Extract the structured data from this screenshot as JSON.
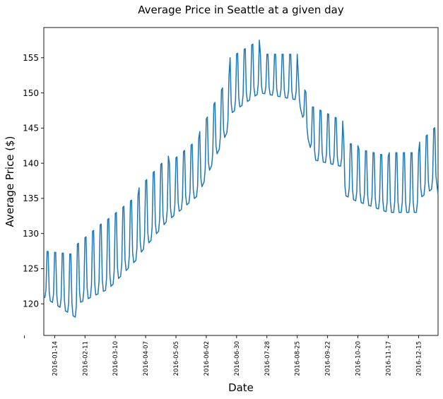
{
  "chart_data": {
    "type": "line",
    "title": "Average Price in Seattle at a given day",
    "xlabel": "Date",
    "ylabel": "Average Price ($)",
    "x_range": [
      "2016-01-04",
      "2017-01-02"
    ],
    "ylim": [
      115.5,
      159.3
    ],
    "y_ticks": [
      120,
      125,
      130,
      135,
      140,
      145,
      150,
      155
    ],
    "x_tick_labels": [
      "2016-01-14",
      "2016-02-11",
      "2016-03-10",
      "2016-04-07",
      "2016-05-05",
      "2016-06-02",
      "2016-06-30",
      "2016-07-28",
      "2016-08-25",
      "2016-09-22",
      "2016-10-20",
      "2016-11-17",
      "2016-12-15"
    ],
    "grid": false,
    "legend": "none",
    "line_color": "#1f77b4",
    "series": [
      {
        "start_date": "2016-01-04",
        "frequency": "daily",
        "weekend_peak_days": [
          3,
          4
        ],
        "segments": [
          {
            "from": "2016-01-04",
            "to": "2016-02-03",
            "base": [
              121,
              118
            ],
            "peak": [
              127.5,
              127
            ]
          },
          {
            "from": "2016-02-04",
            "to": "2016-03-02",
            "base": [
              120,
              122
            ],
            "peak": [
              128.5,
              132
            ]
          },
          {
            "from": "2016-03-03",
            "to": "2016-03-31",
            "base": [
              122,
              126.5
            ],
            "peak": [
              132,
              135.5
            ]
          },
          {
            "from": "2016-04-01",
            "to": "2016-04-28",
            "base": [
              127,
              132
            ],
            "peak": [
              136.5,
              141
            ]
          },
          {
            "from": "2016-04-29",
            "to": "2016-05-26",
            "base": [
              132,
              135.5
            ],
            "peak": [
              140,
              143.5
            ]
          },
          {
            "from": "2016-05-27",
            "to": "2016-06-23",
            "base": [
              136,
              145
            ],
            "peak": [
              144.5,
              152.5
            ]
          },
          {
            "from": "2016-06-24",
            "to": "2016-07-21",
            "base": [
              147,
              150
            ],
            "peak": [
              155,
              157.5
            ]
          },
          {
            "from": "2016-07-22",
            "to": "2016-08-25",
            "base": [
              150,
              149
            ],
            "peak": [
              155.5,
              155.5
            ]
          },
          {
            "from": "2016-08-26",
            "to": "2016-09-08",
            "base": [
              149,
              141
            ],
            "peak": [
              152.5,
              148
            ]
          },
          {
            "from": "2016-09-09",
            "to": "2016-10-06",
            "base": [
              140.5,
              139.5
            ],
            "peak": [
              148,
              146
            ]
          },
          {
            "from": "2016-10-07",
            "to": "2016-10-20",
            "base": [
              135.5,
              134.5
            ],
            "peak": [
              143,
              142.5
            ]
          },
          {
            "from": "2016-10-21",
            "to": "2016-11-17",
            "base": [
              134.5,
              133
            ],
            "peak": [
              142,
              141
            ]
          },
          {
            "from": "2016-11-18",
            "to": "2016-12-15",
            "base": [
              133,
              133
            ],
            "peak": [
              141.5,
              141.5
            ]
          },
          {
            "from": "2016-12-16",
            "to": "2017-01-02",
            "base": [
              135,
              137
            ],
            "peak": [
              143,
              145.5
            ]
          }
        ],
        "end_value": 135.5
      }
    ]
  }
}
